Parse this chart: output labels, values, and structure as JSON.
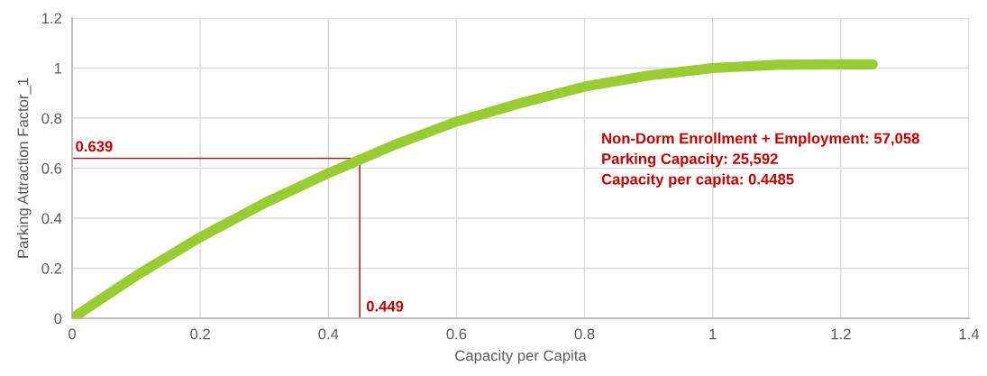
{
  "chart_data": {
    "type": "line",
    "xlabel": "Capacity per Capita",
    "ylabel": "Parking Attraction Factor_1",
    "x": [
      0,
      0.1,
      0.2,
      0.3,
      0.4,
      0.5,
      0.6,
      0.7,
      0.8,
      0.9,
      1.0,
      1.1,
      1.2,
      1.25
    ],
    "series": [
      {
        "color": "#99cc33",
        "values": [
          0,
          0.17,
          0.324,
          0.46,
          0.58,
          0.69,
          0.786,
          0.86,
          0.926,
          0.97,
          1.0,
          1.013,
          1.015,
          1.015
        ]
      }
    ],
    "xlim": [
      0,
      1.4
    ],
    "xticks": [
      0,
      0.2,
      0.4,
      0.6,
      0.8,
      1,
      1.2,
      1.4
    ],
    "ylim": [
      0,
      1.2
    ],
    "yticks": [
      0,
      0.2,
      0.4,
      0.6,
      0.8,
      1,
      1.2
    ],
    "grid": true,
    "marker": "none",
    "line_style": "solid",
    "ref_lines": [
      {
        "axis": "y",
        "value": 0.639,
        "label": "0.639",
        "color": "#c00000"
      },
      {
        "axis": "x",
        "value": 0.449,
        "label": "0.449",
        "color": "#c00000"
      }
    ],
    "annotations": [
      "Non-Dorm Enrollment + Employment: 57,058",
      "Parking Capacity: 25,592",
      "Capacity per capita: 0.4485"
    ]
  }
}
